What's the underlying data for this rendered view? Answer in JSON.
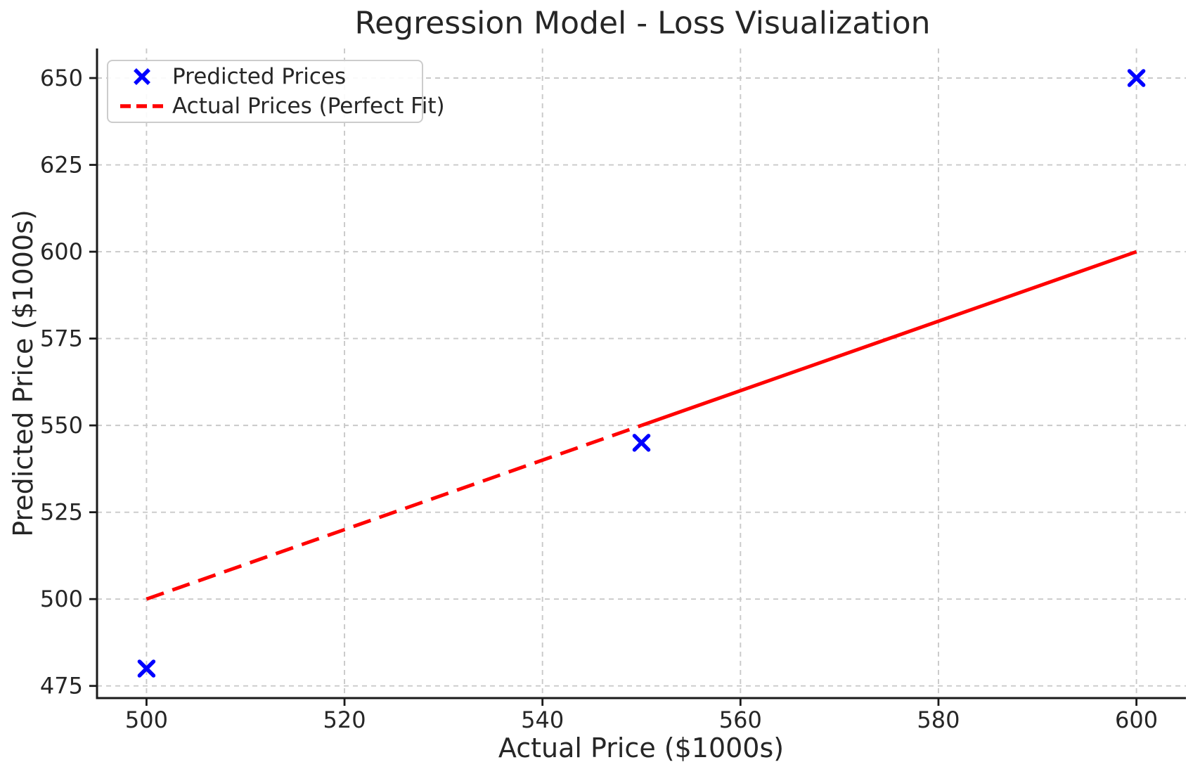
{
  "chart_data": {
    "type": "scatter",
    "title": "Regression Model - Loss Visualization",
    "xlabel": "Actual Price ($1000s)",
    "ylabel": "Predicted Price ($1000s)",
    "xlim": [
      495,
      605
    ],
    "ylim": [
      471.5,
      658.5
    ],
    "x_ticks": [
      500,
      520,
      540,
      560,
      580,
      600
    ],
    "y_ticks": [
      475,
      500,
      525,
      550,
      575,
      600,
      625,
      650
    ],
    "grid": true,
    "grid_style": "dashed",
    "legend_position": "upper-left",
    "series": [
      {
        "name": "Predicted Prices",
        "type": "scatter",
        "marker": "x",
        "color": "#0000ff",
        "points": [
          [
            500,
            480
          ],
          [
            550,
            545
          ],
          [
            600,
            650
          ]
        ]
      },
      {
        "name": "Actual Prices (Perfect Fit)",
        "type": "line",
        "color": "#ff0000",
        "segments": [
          {
            "x": [
              500,
              550
            ],
            "y": [
              500,
              550
            ],
            "dash": "dashed"
          },
          {
            "x": [
              550,
              600
            ],
            "y": [
              550,
              600
            ],
            "dash": "solid"
          }
        ]
      }
    ],
    "legend": {
      "entries": [
        {
          "label": "Predicted Prices",
          "marker": "x",
          "color": "#0000ff"
        },
        {
          "label": "Actual Prices (Perfect Fit)",
          "marker": "dashed-line",
          "color": "#ff0000"
        }
      ]
    },
    "colors": {
      "grid": "#c9c9c9",
      "spine": "#1a1a1a",
      "text": "#262626",
      "background": "#ffffff"
    }
  }
}
